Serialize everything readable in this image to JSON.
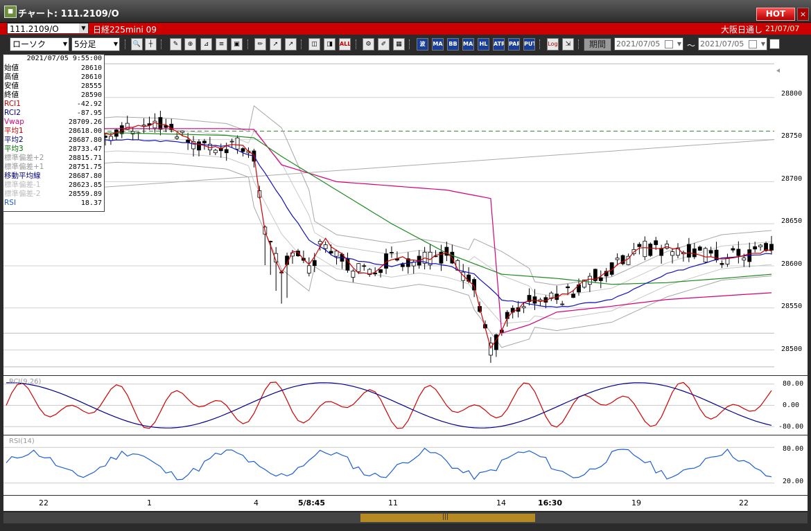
{
  "window": {
    "title": "チャート: 111.2109/O",
    "hot_label": "HOT",
    "close_label": "×"
  },
  "symbol_bar": {
    "code": "111.2109/O",
    "name": "日経225mini 09",
    "market": "大阪日通し",
    "date": "21/07/07"
  },
  "toolbar": {
    "chart_type": "ローソク",
    "interval": "5分足",
    "period_label": "期間",
    "from_date": "2021/07/05",
    "to_date": "2021/07/05",
    "indicator_buttons": [
      "MA",
      "BB",
      "MAE",
      "HL",
      "ATR",
      "PARA",
      "PUT",
      "Log"
    ],
    "all_label": "ALL"
  },
  "info_panel": {
    "timestamp": "2021/07/05 9:55:00",
    "rows": [
      {
        "label": "始値",
        "value": "28610",
        "color": "#000000"
      },
      {
        "label": "高値",
        "value": "28610",
        "color": "#000000"
      },
      {
        "label": "安値",
        "value": "28555",
        "color": "#000000"
      },
      {
        "label": "終値",
        "value": "28590",
        "color": "#000000"
      },
      {
        "label": "RCI1",
        "value": "-42.92",
        "color": "#cc0000"
      },
      {
        "label": "RCI2",
        "value": "-87.95",
        "color": "#00008b"
      },
      {
        "label": "Vwap",
        "value": "28709.26",
        "color": "#d6007a"
      },
      {
        "label": "平均1",
        "value": "28618.00",
        "color": "#cc0000"
      },
      {
        "label": "平均2",
        "value": "28687.80",
        "color": "#000080"
      },
      {
        "label": "平均3",
        "value": "28733.47",
        "color": "#007000"
      },
      {
        "label": "標準偏差+2",
        "value": "28815.71",
        "color": "#999999"
      },
      {
        "label": "標準偏差+1",
        "value": "28751.75",
        "color": "#999999"
      },
      {
        "label": "移動平均線",
        "value": "28687.80",
        "color": "#000080"
      },
      {
        "label": "標準偏差-1",
        "value": "28623.85",
        "color": "#bbbbbb"
      },
      {
        "label": "標準偏差-2",
        "value": "28559.89",
        "color": "#bbbbbb"
      },
      {
        "label": "RSI",
        "value": "18.37",
        "color": "#1e5fd6"
      }
    ]
  },
  "price_axis": {
    "labels": [
      "28800",
      "28750",
      "28700",
      "28650",
      "28600",
      "28550",
      "28500"
    ],
    "range": [
      28470,
      28850
    ],
    "dashed_level": 28760
  },
  "rci": {
    "label": "RCI(9,26)",
    "axis_labels": [
      "80.00",
      "0.00",
      "-80.00"
    ],
    "range": [
      -100,
      100
    ]
  },
  "rsi": {
    "label": "RSI(14)",
    "axis_labels": [
      "80.00",
      "20.00"
    ],
    "range": [
      0,
      100
    ]
  },
  "x_axis": {
    "labels": [
      {
        "text": "22",
        "bold": false
      },
      {
        "text": "1",
        "bold": false
      },
      {
        "text": "4",
        "bold": false
      },
      {
        "text": "5/8:45",
        "bold": true
      },
      {
        "text": "11",
        "bold": false
      },
      {
        "text": "14",
        "bold": false
      },
      {
        "text": "16:30",
        "bold": true
      },
      {
        "text": "19",
        "bold": false
      },
      {
        "text": "22",
        "bold": false
      }
    ]
  },
  "chart_data": {
    "type": "line",
    "title": "",
    "series": [
      {
        "name": "price",
        "approx_path": [
          [
            0,
            28740
          ],
          [
            10,
            28735
          ],
          [
            20,
            28760
          ],
          [
            28,
            28770
          ],
          [
            35,
            28745
          ],
          [
            40,
            28740
          ],
          [
            43,
            28745
          ],
          [
            45,
            28730
          ],
          [
            47,
            28640
          ],
          [
            50,
            28590
          ],
          [
            52,
            28620
          ],
          [
            55,
            28600
          ],
          [
            58,
            28630
          ],
          [
            60,
            28620
          ],
          [
            63,
            28595
          ],
          [
            66,
            28590
          ],
          [
            70,
            28610
          ],
          [
            75,
            28605
          ],
          [
            80,
            28615
          ],
          [
            83,
            28590
          ],
          [
            85,
            28575
          ],
          [
            88,
            28500
          ],
          [
            89,
            28510
          ],
          [
            91,
            28540
          ],
          [
            95,
            28560
          ],
          [
            100,
            28560
          ],
          [
            105,
            28580
          ],
          [
            110,
            28595
          ],
          [
            115,
            28620
          ],
          [
            120,
            28620
          ],
          [
            125,
            28615
          ],
          [
            130,
            28610
          ],
          [
            135,
            28615
          ],
          [
            139,
            28620
          ]
        ]
      },
      {
        "name": "移動平均線",
        "approx_path": [
          [
            0,
            28745
          ],
          [
            10,
            28745
          ],
          [
            20,
            28750
          ],
          [
            30,
            28748
          ],
          [
            40,
            28742
          ],
          [
            45,
            28730
          ],
          [
            50,
            28680
          ],
          [
            55,
            28630
          ],
          [
            60,
            28610
          ],
          [
            65,
            28605
          ],
          [
            70,
            28600
          ],
          [
            75,
            28605
          ],
          [
            80,
            28600
          ],
          [
            85,
            28590
          ],
          [
            90,
            28560
          ],
          [
            95,
            28555
          ],
          [
            100,
            28550
          ],
          [
            110,
            28560
          ],
          [
            120,
            28590
          ],
          [
            130,
            28610
          ],
          [
            139,
            28615
          ]
        ]
      },
      {
        "name": "平均3",
        "approx_path": [
          [
            0,
            28755
          ],
          [
            20,
            28758
          ],
          [
            40,
            28755
          ],
          [
            45,
            28752
          ],
          [
            50,
            28730
          ],
          [
            60,
            28690
          ],
          [
            70,
            28650
          ],
          [
            80,
            28615
          ],
          [
            90,
            28590
          ],
          [
            100,
            28585
          ],
          [
            110,
            28578
          ],
          [
            120,
            28580
          ],
          [
            130,
            28585
          ],
          [
            139,
            28590
          ]
        ]
      },
      {
        "name": "Vwap",
        "approx_path": [
          [
            0,
            28763
          ],
          [
            40,
            28763
          ],
          [
            45,
            28762
          ],
          [
            50,
            28720
          ],
          [
            60,
            28700
          ],
          [
            70,
            28695
          ],
          [
            80,
            28690
          ],
          [
            88,
            28680
          ],
          [
            90,
            28520
          ],
          [
            95,
            28530
          ],
          [
            100,
            28545
          ],
          [
            110,
            28552
          ],
          [
            120,
            28560
          ],
          [
            139,
            28568
          ]
        ]
      }
    ]
  }
}
